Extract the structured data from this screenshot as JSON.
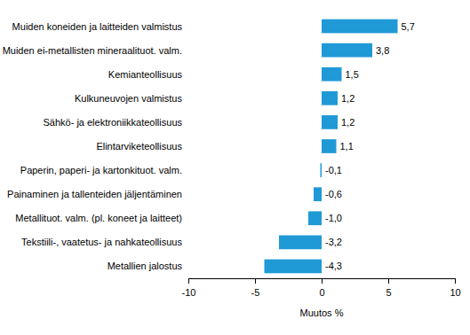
{
  "chart_data": {
    "type": "bar",
    "orientation": "horizontal",
    "categories": [
      "Muiden koneiden ja laitteiden valmistus",
      "Muiden ei-metallisten mineraalituot. valm.",
      "Kemianteollisuus",
      "Kulkuneuvojen valmistus",
      "Sähkö- ja elektroniikkateollisuus",
      "Elintarviketeollisuus",
      "Paperin, paperi- ja kartonkituot. valm.",
      "Painaminen ja tallenteiden jäljentäminen",
      "Metallituot. valm. (pl. koneet ja laitteet)",
      "Tekstiili-, vaatetus- ja nahkateollisuus",
      "Metallien jalostus"
    ],
    "values": [
      5.7,
      3.8,
      1.5,
      1.2,
      1.2,
      1.1,
      -0.1,
      -0.6,
      -1.0,
      -3.2,
      -4.3
    ],
    "value_labels": [
      "5,7",
      "3,8",
      "1,5",
      "1,2",
      "1,2",
      "1,1",
      "-0,1",
      "-0,6",
      "-1,0",
      "-3,2",
      "-4,3"
    ],
    "data_labels": true,
    "color": "#1f9ad6",
    "xlabel": "Muutos %",
    "xlim": [
      -10,
      10
    ],
    "xticks": [
      -10,
      -5,
      0,
      5,
      10
    ],
    "grid": false
  }
}
